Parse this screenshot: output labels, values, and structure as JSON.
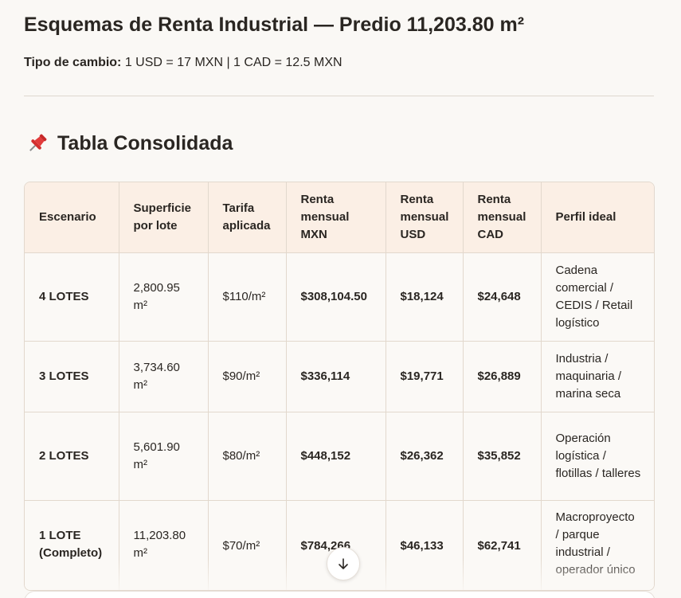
{
  "header": {
    "title": "Esquemas de Renta Industrial — Predio 11,203.80 m²",
    "rate_label": "Tipo de cambio:",
    "rate_value": " 1 USD = 17 MXN | 1 CAD = 12.5 MXN"
  },
  "section": {
    "title": "Tabla Consolidada",
    "icon": "pushpin-icon"
  },
  "table": {
    "headers": [
      "Escenario",
      "Superficie por lote",
      "Tarifa aplicada",
      "Renta mensual MXN",
      "Renta mensual USD",
      "Renta mensual CAD",
      "Perfil ideal"
    ],
    "rows": [
      {
        "escenario": "4 LOTES",
        "superficie": "2,800.95 m²",
        "tarifa": "$110/m²",
        "mxn": "$308,104.50",
        "usd": "$18,124",
        "cad": "$24,648",
        "perfil": "Cadena comercial / CEDIS / Retail logístico"
      },
      {
        "escenario": "3 LOTES",
        "superficie": "3,734.60 m²",
        "tarifa": "$90/m²",
        "mxn": "$336,114",
        "usd": "$19,771",
        "cad": "$26,889",
        "perfil": "Industria / maquinaria / marina seca"
      },
      {
        "escenario": "2 LOTES",
        "superficie": "5,601.90 m²",
        "tarifa": "$80/m²",
        "mxn": "$448,152",
        "usd": "$26,362",
        "cad": "$35,852",
        "perfil": "Operación logística / flotillas / talleres"
      },
      {
        "escenario": "1 LOTE (Completo)",
        "superficie": "11,203.80 m²",
        "tarifa": "$70/m²",
        "mxn": "$784,266",
        "usd": "$46,133",
        "cad": "$62,741",
        "perfil": "Macroproyecto / parque industrial / operador único"
      }
    ]
  },
  "controls": {
    "scroll_down_icon": "arrow-down-icon"
  },
  "colors": {
    "background": "#faf8f5",
    "header_row": "#fbefe5",
    "border": "#e2d8cd",
    "text": "#2a2622",
    "pin_red": "#e23b3b"
  }
}
